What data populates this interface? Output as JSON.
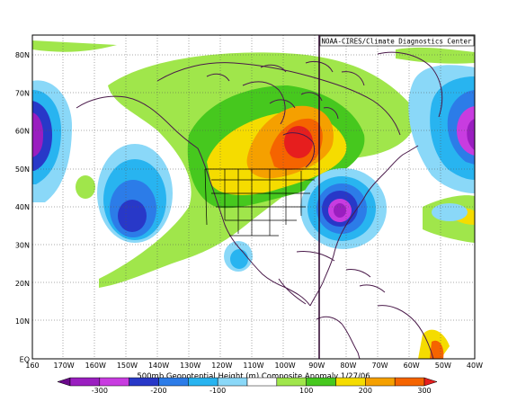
{
  "map": {
    "credit": "NOAA-CIRES/Climate Diagnostics Center",
    "caption": "500mb Geopotential Height (m) Composite Anomaly 1/27/06",
    "lat_labels": [
      "80N",
      "70N",
      "60N",
      "50N",
      "40N",
      "30N",
      "20N",
      "10N",
      "EQ"
    ],
    "lon_labels": [
      "160",
      "170W",
      "160W",
      "150W",
      "140W",
      "130W",
      "120W",
      "110W",
      "100W",
      "90W",
      "80W",
      "70W",
      "60W",
      "50W",
      "40W"
    ],
    "colorbar": {
      "tick_labels": [
        "-300",
        "-200",
        "-100",
        "100",
        "200",
        "300"
      ],
      "colors": [
        "#6a0a8a",
        "#9a1ec0",
        "#c83ce0",
        "#2838c8",
        "#2c7ce8",
        "#28b4f0",
        "#8ad8f8",
        "#ffffff",
        "#a0e64b",
        "#46c81e",
        "#f5dc00",
        "#f5a000",
        "#f56400",
        "#e61e1e"
      ]
    }
  }
}
